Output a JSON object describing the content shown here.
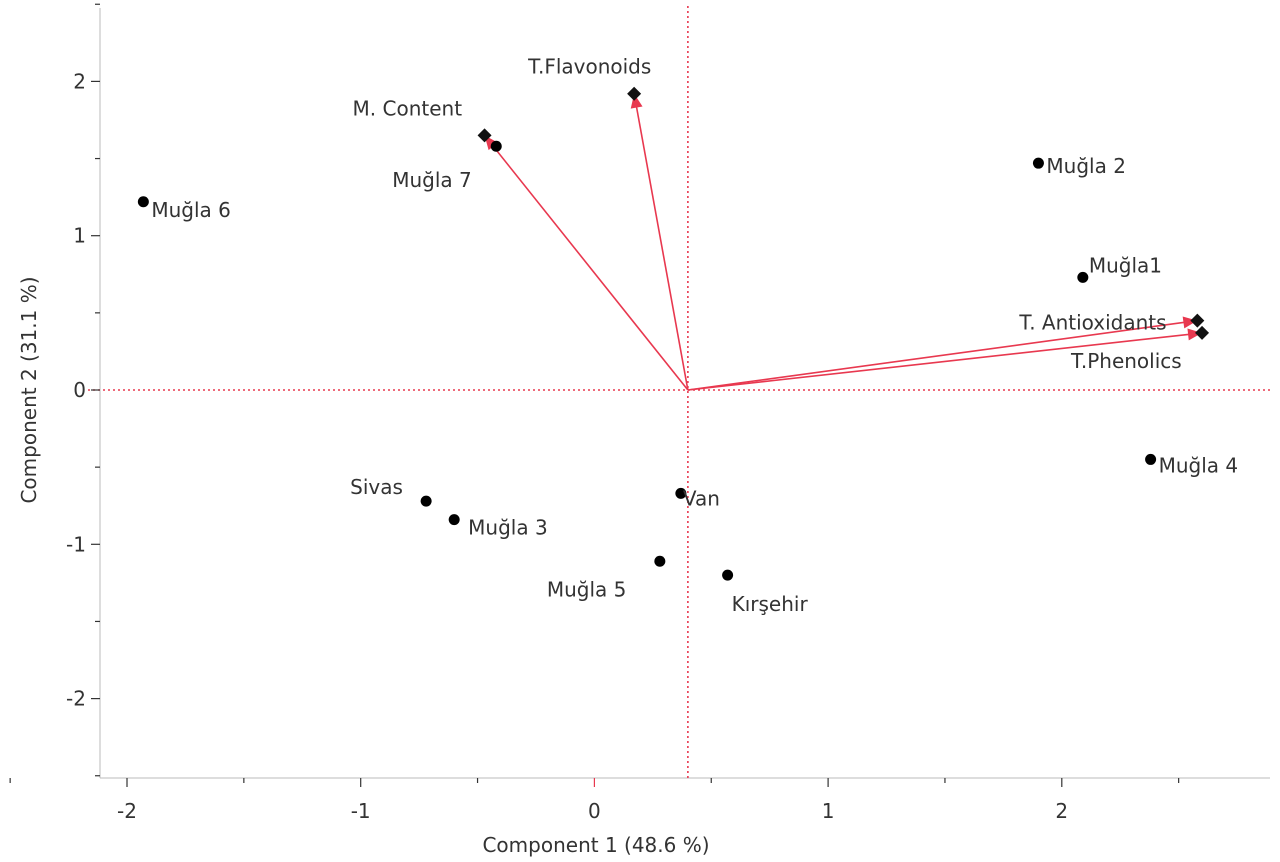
{
  "chart_data": {
    "type": "scatter",
    "subtype": "pca-biplot",
    "title": "",
    "xlabel": "Component 1  (48.6 %)",
    "ylabel": "Component 2  (31.1 %)",
    "xlim": [
      -2.2,
      2.6
    ],
    "ylim": [
      -2.5,
      2.5
    ],
    "x_ticks": [
      -2,
      -1,
      0,
      1,
      2
    ],
    "x_tick_labels": [
      "-2",
      "-1",
      "0",
      "1",
      "2"
    ],
    "y_ticks": [
      -2,
      -1,
      0,
      1,
      2
    ],
    "y_tick_labels": [
      "-2",
      "-1",
      "0",
      "1",
      "2"
    ],
    "grid": false,
    "colors": {
      "points": "#000000",
      "loadings": "#e8384f",
      "zero_lines": "#e8384f",
      "axis": "#333333"
    },
    "origin_lines": {
      "x": 0.4,
      "y": 0
    },
    "scores": [
      {
        "label": "Muğla 6",
        "x": -1.93,
        "y": 1.22
      },
      {
        "label": "Muğla 7",
        "x": -0.42,
        "y": 1.58
      },
      {
        "label": "Muğla 2",
        "x": 1.9,
        "y": 1.47
      },
      {
        "label": "Muğla1",
        "x": 2.09,
        "y": 0.73
      },
      {
        "label": "Muğla 4",
        "x": 2.38,
        "y": -0.45
      },
      {
        "label": "Sivas",
        "x": -0.72,
        "y": -0.72
      },
      {
        "label": "Muğla 3",
        "x": -0.6,
        "y": -0.84
      },
      {
        "label": "Van",
        "x": 0.37,
        "y": -0.67
      },
      {
        "label": "Muğla 5",
        "x": 0.28,
        "y": -1.11
      },
      {
        "label": "Kırşehir",
        "x": 0.57,
        "y": -1.2
      }
    ],
    "loadings": [
      {
        "label": "M. Content",
        "x": -0.47,
        "y": 1.65
      },
      {
        "label": "T.Flavonoids",
        "x": 0.17,
        "y": 1.92
      },
      {
        "label": "T. Antioxidants",
        "x": 2.58,
        "y": 0.45
      },
      {
        "label": "T.Phenolics",
        "x": 2.6,
        "y": 0.37
      }
    ]
  }
}
